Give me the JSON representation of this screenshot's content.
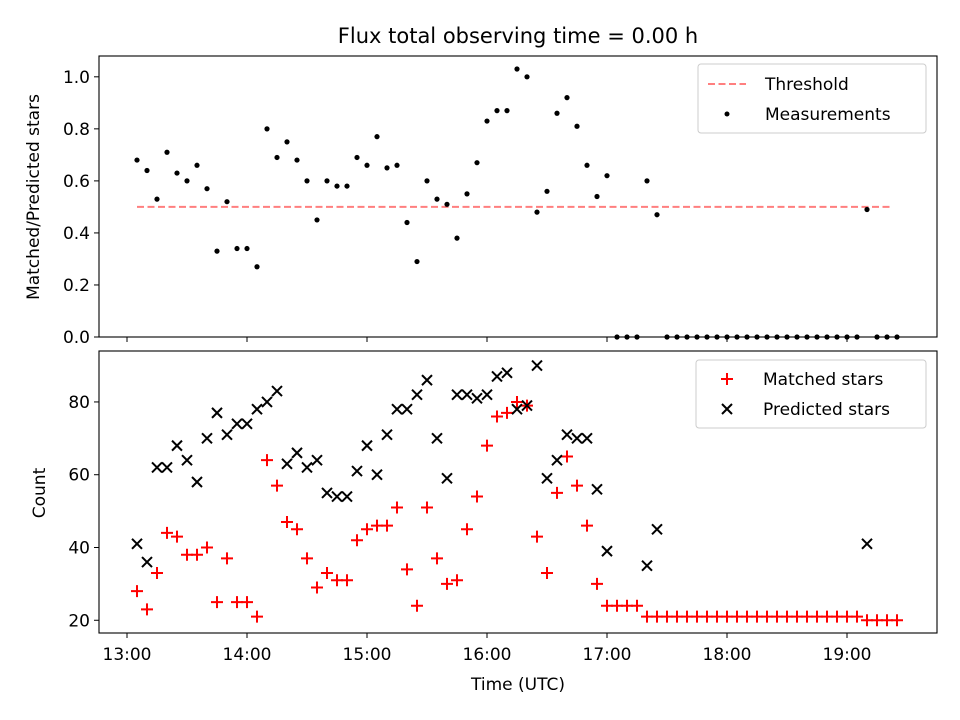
{
  "chart_data": [
    {
      "type": "scatter",
      "title": "Flux total observing time = 0.00 h",
      "xlabel": "",
      "ylabel": "Matched/Predicted stars",
      "xlim": [
        "12:46",
        "19:45"
      ],
      "ylim": [
        0,
        1.08
      ],
      "yticks": [
        0.0,
        0.2,
        0.4,
        0.6,
        0.8,
        1.0
      ],
      "ytick_labels": [
        "0.0",
        "0.2",
        "0.4",
        "0.6",
        "0.8",
        "1.0"
      ],
      "legend": {
        "position": "upper right",
        "entries": [
          "Threshold",
          "Measurements"
        ]
      },
      "threshold": {
        "name": "Threshold",
        "y": 0.5,
        "x_start": "13:05",
        "x_end": "19:22",
        "color": "#ff7f7f",
        "style": "dashed"
      },
      "series": [
        {
          "name": "Measurements",
          "color": "#000000",
          "marker": "dot",
          "points": [
            [
              "13:05",
              0.68
            ],
            [
              "13:10",
              0.64
            ],
            [
              "13:15",
              0.53
            ],
            [
              "13:20",
              0.71
            ],
            [
              "13:25",
              0.63
            ],
            [
              "13:30",
              0.6
            ],
            [
              "13:35",
              0.66
            ],
            [
              "13:40",
              0.57
            ],
            [
              "13:45",
              0.33
            ],
            [
              "13:50",
              0.52
            ],
            [
              "13:55",
              0.34
            ],
            [
              "14:00",
              0.34
            ],
            [
              "14:05",
              0.27
            ],
            [
              "14:10",
              0.8
            ],
            [
              "14:15",
              0.69
            ],
            [
              "14:20",
              0.75
            ],
            [
              "14:25",
              0.68
            ],
            [
              "14:30",
              0.6
            ],
            [
              "14:35",
              0.45
            ],
            [
              "14:40",
              0.6
            ],
            [
              "14:45",
              0.58
            ],
            [
              "14:50",
              0.58
            ],
            [
              "14:55",
              0.69
            ],
            [
              "15:00",
              0.66
            ],
            [
              "15:05",
              0.77
            ],
            [
              "15:10",
              0.65
            ],
            [
              "15:15",
              0.66
            ],
            [
              "15:20",
              0.44
            ],
            [
              "15:25",
              0.29
            ],
            [
              "15:30",
              0.6
            ],
            [
              "15:35",
              0.53
            ],
            [
              "15:40",
              0.51
            ],
            [
              "15:45",
              0.38
            ],
            [
              "15:50",
              0.55
            ],
            [
              "15:55",
              0.67
            ],
            [
              "16:00",
              0.83
            ],
            [
              "16:05",
              0.87
            ],
            [
              "16:10",
              0.87
            ],
            [
              "16:15",
              1.03
            ],
            [
              "16:20",
              1.0
            ],
            [
              "16:25",
              0.48
            ],
            [
              "16:30",
              0.56
            ],
            [
              "16:35",
              0.86
            ],
            [
              "16:40",
              0.92
            ],
            [
              "16:45",
              0.81
            ],
            [
              "16:50",
              0.66
            ],
            [
              "16:55",
              0.54
            ],
            [
              "17:00",
              0.62
            ],
            [
              "17:05",
              0.0
            ],
            [
              "17:10",
              0.0
            ],
            [
              "17:15",
              0.0
            ],
            [
              "17:20",
              0.6
            ],
            [
              "17:25",
              0.47
            ],
            [
              "17:30",
              0.0
            ],
            [
              "17:35",
              0.0
            ],
            [
              "17:40",
              0.0
            ],
            [
              "17:45",
              0.0
            ],
            [
              "17:50",
              0.0
            ],
            [
              "17:55",
              0.0
            ],
            [
              "18:00",
              0.0
            ],
            [
              "18:05",
              0.0
            ],
            [
              "18:10",
              0.0
            ],
            [
              "18:15",
              0.0
            ],
            [
              "18:20",
              0.0
            ],
            [
              "18:25",
              0.0
            ],
            [
              "18:30",
              0.0
            ],
            [
              "18:35",
              0.0
            ],
            [
              "18:40",
              0.0
            ],
            [
              "18:45",
              0.0
            ],
            [
              "18:50",
              0.0
            ],
            [
              "18:55",
              0.0
            ],
            [
              "19:00",
              0.0
            ],
            [
              "19:05",
              0.0
            ],
            [
              "19:10",
              0.49
            ],
            [
              "19:15",
              0.0
            ],
            [
              "19:20",
              0.0
            ],
            [
              "19:25",
              0.0
            ]
          ]
        }
      ]
    },
    {
      "type": "scatter",
      "title": "",
      "xlabel": "Time (UTC)",
      "ylabel": "Count",
      "xlim": [
        "12:46",
        "19:45"
      ],
      "ylim": [
        16.5,
        94
      ],
      "yticks": [
        20,
        40,
        60,
        80
      ],
      "ytick_labels": [
        "20",
        "40",
        "60",
        "80"
      ],
      "xticks": [
        "13:00",
        "14:00",
        "15:00",
        "16:00",
        "17:00",
        "18:00",
        "19:00"
      ],
      "legend": {
        "position": "upper right",
        "entries": [
          "Matched stars",
          "Predicted stars"
        ]
      },
      "series": [
        {
          "name": "Matched stars",
          "color": "#ff0000",
          "marker": "plus",
          "points": [
            [
              "13:05",
              28
            ],
            [
              "13:10",
              23
            ],
            [
              "13:15",
              33
            ],
            [
              "13:20",
              44
            ],
            [
              "13:25",
              43
            ],
            [
              "13:30",
              38
            ],
            [
              "13:35",
              38
            ],
            [
              "13:40",
              40
            ],
            [
              "13:45",
              25
            ],
            [
              "13:50",
              37
            ],
            [
              "13:55",
              25
            ],
            [
              "14:00",
              25
            ],
            [
              "14:05",
              21
            ],
            [
              "14:10",
              64
            ],
            [
              "14:15",
              57
            ],
            [
              "14:20",
              47
            ],
            [
              "14:25",
              45
            ],
            [
              "14:30",
              37
            ],
            [
              "14:35",
              29
            ],
            [
              "14:40",
              33
            ],
            [
              "14:45",
              31
            ],
            [
              "14:50",
              31
            ],
            [
              "14:55",
              42
            ],
            [
              "15:00",
              45
            ],
            [
              "15:05",
              46
            ],
            [
              "15:10",
              46
            ],
            [
              "15:15",
              51
            ],
            [
              "15:20",
              34
            ],
            [
              "15:25",
              24
            ],
            [
              "15:30",
              51
            ],
            [
              "15:35",
              37
            ],
            [
              "15:40",
              30
            ],
            [
              "15:45",
              31
            ],
            [
              "15:50",
              45
            ],
            [
              "15:55",
              54
            ],
            [
              "16:00",
              68
            ],
            [
              "16:05",
              76
            ],
            [
              "16:10",
              77
            ],
            [
              "16:15",
              80
            ],
            [
              "16:20",
              79
            ],
            [
              "16:25",
              43
            ],
            [
              "16:30",
              33
            ],
            [
              "16:35",
              55
            ],
            [
              "16:40",
              65
            ],
            [
              "16:45",
              57
            ],
            [
              "16:50",
              46
            ],
            [
              "16:55",
              30
            ],
            [
              "17:00",
              24
            ],
            [
              "17:05",
              24
            ],
            [
              "17:10",
              24
            ],
            [
              "17:15",
              24
            ],
            [
              "17:20",
              21
            ],
            [
              "17:25",
              21
            ],
            [
              "17:30",
              21
            ],
            [
              "17:35",
              21
            ],
            [
              "17:40",
              21
            ],
            [
              "17:45",
              21
            ],
            [
              "17:50",
              21
            ],
            [
              "17:55",
              21
            ],
            [
              "18:00",
              21
            ],
            [
              "18:05",
              21
            ],
            [
              "18:10",
              21
            ],
            [
              "18:15",
              21
            ],
            [
              "18:20",
              21
            ],
            [
              "18:25",
              21
            ],
            [
              "18:30",
              21
            ],
            [
              "18:35",
              21
            ],
            [
              "18:40",
              21
            ],
            [
              "18:45",
              21
            ],
            [
              "18:50",
              21
            ],
            [
              "18:55",
              21
            ],
            [
              "19:00",
              21
            ],
            [
              "19:05",
              21
            ],
            [
              "19:10",
              20
            ],
            [
              "19:15",
              20
            ],
            [
              "19:20",
              20
            ],
            [
              "19:25",
              20
            ]
          ]
        },
        {
          "name": "Predicted stars",
          "color": "#000000",
          "marker": "x",
          "points": [
            [
              "13:05",
              41
            ],
            [
              "13:10",
              36
            ],
            [
              "13:15",
              62
            ],
            [
              "13:20",
              62
            ],
            [
              "13:25",
              68
            ],
            [
              "13:30",
              64
            ],
            [
              "13:35",
              58
            ],
            [
              "13:40",
              70
            ],
            [
              "13:45",
              77
            ],
            [
              "13:50",
              71
            ],
            [
              "13:55",
              74
            ],
            [
              "14:00",
              74
            ],
            [
              "14:05",
              78
            ],
            [
              "14:10",
              80
            ],
            [
              "14:15",
              83
            ],
            [
              "14:20",
              63
            ],
            [
              "14:25",
              66
            ],
            [
              "14:30",
              62
            ],
            [
              "14:35",
              64
            ],
            [
              "14:40",
              55
            ],
            [
              "14:45",
              54
            ],
            [
              "14:50",
              54
            ],
            [
              "14:55",
              61
            ],
            [
              "15:00",
              68
            ],
            [
              "15:05",
              60
            ],
            [
              "15:10",
              71
            ],
            [
              "15:15",
              78
            ],
            [
              "15:20",
              78
            ],
            [
              "15:25",
              82
            ],
            [
              "15:30",
              86
            ],
            [
              "15:35",
              70
            ],
            [
              "15:40",
              59
            ],
            [
              "15:45",
              82
            ],
            [
              "15:50",
              82
            ],
            [
              "15:55",
              81
            ],
            [
              "16:00",
              82
            ],
            [
              "16:05",
              87
            ],
            [
              "16:10",
              88
            ],
            [
              "16:15",
              78
            ],
            [
              "16:20",
              79
            ],
            [
              "16:25",
              90
            ],
            [
              "16:30",
              59
            ],
            [
              "16:35",
              64
            ],
            [
              "16:40",
              71
            ],
            [
              "16:45",
              70
            ],
            [
              "16:50",
              70
            ],
            [
              "16:55",
              56
            ],
            [
              "17:00",
              39
            ],
            [
              "17:20",
              35
            ],
            [
              "17:25",
              45
            ],
            [
              "19:10",
              41
            ]
          ]
        }
      ]
    }
  ]
}
